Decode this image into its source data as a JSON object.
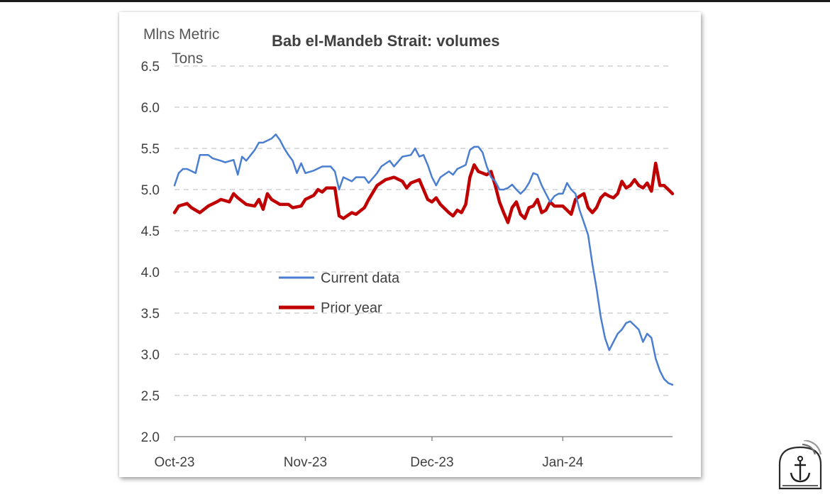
{
  "chart_data": {
    "type": "line",
    "title": "Bab el-Mandeb Strait: volumes",
    "ylabel_lines": [
      "Mlns Metric",
      "Tons"
    ],
    "xlabel": "",
    "ylim": [
      2.0,
      6.5
    ],
    "yticks": [
      "6.5",
      "6.0",
      "5.5",
      "5.0",
      "4.5",
      "4.0",
      "3.5",
      "3.0",
      "2.5",
      "2.0"
    ],
    "xlim": [
      "2023-10-01",
      "2024-01-27"
    ],
    "xticks": [
      {
        "label": "Oct-23",
        "date": "2023-10-01"
      },
      {
        "label": "Nov-23",
        "date": "2023-11-01"
      },
      {
        "label": "Dec-23",
        "date": "2023-12-01"
      },
      {
        "label": "Jan-24",
        "date": "2024-01-01"
      }
    ],
    "grid": "horizontal dashed",
    "legend_position": "center-left",
    "series": [
      {
        "name": "Current data",
        "color": "#4a7ed0",
        "points": [
          [
            "2023-10-01",
            5.05
          ],
          [
            "2023-10-02",
            5.2
          ],
          [
            "2023-10-03",
            5.25
          ],
          [
            "2023-10-04",
            5.25
          ],
          [
            "2023-10-06",
            5.2
          ],
          [
            "2023-10-07",
            5.42
          ],
          [
            "2023-10-09",
            5.42
          ],
          [
            "2023-10-10",
            5.38
          ],
          [
            "2023-10-12",
            5.35
          ],
          [
            "2023-10-13",
            5.33
          ],
          [
            "2023-10-15",
            5.36
          ],
          [
            "2023-10-16",
            5.18
          ],
          [
            "2023-10-17",
            5.4
          ],
          [
            "2023-10-18",
            5.35
          ],
          [
            "2023-10-20",
            5.48
          ],
          [
            "2023-10-21",
            5.57
          ],
          [
            "2023-10-22",
            5.57
          ],
          [
            "2023-10-24",
            5.62
          ],
          [
            "2023-10-25",
            5.67
          ],
          [
            "2023-10-26",
            5.6
          ],
          [
            "2023-10-27",
            5.5
          ],
          [
            "2023-10-28",
            5.42
          ],
          [
            "2023-10-29",
            5.35
          ],
          [
            "2023-10-30",
            5.2
          ],
          [
            "2023-10-31",
            5.32
          ],
          [
            "2023-11-01",
            5.2
          ],
          [
            "2023-11-03",
            5.23
          ],
          [
            "2023-11-05",
            5.28
          ],
          [
            "2023-11-07",
            5.28
          ],
          [
            "2023-11-08",
            5.22
          ],
          [
            "2023-11-09",
            5.0
          ],
          [
            "2023-11-10",
            5.15
          ],
          [
            "2023-11-12",
            5.1
          ],
          [
            "2023-11-13",
            5.15
          ],
          [
            "2023-11-15",
            5.15
          ],
          [
            "2023-11-16",
            5.08
          ],
          [
            "2023-11-18",
            5.2
          ],
          [
            "2023-11-19",
            5.28
          ],
          [
            "2023-11-21",
            5.35
          ],
          [
            "2023-11-22",
            5.28
          ],
          [
            "2023-11-24",
            5.4
          ],
          [
            "2023-11-26",
            5.42
          ],
          [
            "2023-11-27",
            5.5
          ],
          [
            "2023-11-28",
            5.4
          ],
          [
            "2023-11-29",
            5.42
          ],
          [
            "2023-11-30",
            5.3
          ],
          [
            "2023-12-01",
            5.15
          ],
          [
            "2023-12-02",
            5.05
          ],
          [
            "2023-12-03",
            5.15
          ],
          [
            "2023-12-05",
            5.22
          ],
          [
            "2023-12-06",
            5.18
          ],
          [
            "2023-12-07",
            5.25
          ],
          [
            "2023-12-09",
            5.3
          ],
          [
            "2023-12-10",
            5.48
          ],
          [
            "2023-12-11",
            5.52
          ],
          [
            "2023-12-12",
            5.52
          ],
          [
            "2023-12-13",
            5.45
          ],
          [
            "2023-12-14",
            5.28
          ],
          [
            "2023-12-15",
            5.15
          ],
          [
            "2023-12-16",
            5.1
          ],
          [
            "2023-12-17",
            5.0
          ],
          [
            "2023-12-18",
            5.0
          ],
          [
            "2023-12-19",
            5.02
          ],
          [
            "2023-12-20",
            5.06
          ],
          [
            "2023-12-21",
            5.0
          ],
          [
            "2023-12-22",
            4.95
          ],
          [
            "2023-12-23",
            5.0
          ],
          [
            "2023-12-24",
            5.08
          ],
          [
            "2023-12-25",
            5.2
          ],
          [
            "2023-12-26",
            5.18
          ],
          [
            "2023-12-27",
            5.05
          ],
          [
            "2023-12-28",
            4.95
          ],
          [
            "2023-12-29",
            4.85
          ],
          [
            "2023-12-30",
            4.92
          ],
          [
            "2023-12-31",
            4.95
          ],
          [
            "2024-01-01",
            4.95
          ],
          [
            "2024-01-02",
            5.08
          ],
          [
            "2024-01-03",
            5.0
          ],
          [
            "2024-01-04",
            4.95
          ],
          [
            "2024-01-05",
            4.75
          ],
          [
            "2024-01-06",
            4.6
          ],
          [
            "2024-01-07",
            4.45
          ],
          [
            "2024-01-08",
            4.1
          ],
          [
            "2024-01-09",
            3.8
          ],
          [
            "2024-01-10",
            3.45
          ],
          [
            "2024-01-11",
            3.2
          ],
          [
            "2024-01-12",
            3.05
          ],
          [
            "2024-01-13",
            3.15
          ],
          [
            "2024-01-14",
            3.25
          ],
          [
            "2024-01-15",
            3.3
          ],
          [
            "2024-01-16",
            3.38
          ],
          [
            "2024-01-17",
            3.4
          ],
          [
            "2024-01-18",
            3.35
          ],
          [
            "2024-01-19",
            3.3
          ],
          [
            "2024-01-20",
            3.15
          ],
          [
            "2024-01-21",
            3.25
          ],
          [
            "2024-01-22",
            3.2
          ],
          [
            "2024-01-23",
            2.95
          ],
          [
            "2024-01-24",
            2.8
          ],
          [
            "2024-01-25",
            2.7
          ],
          [
            "2024-01-26",
            2.65
          ],
          [
            "2024-01-27",
            2.63
          ]
        ]
      },
      {
        "name": "Prior year",
        "color": "#c00000",
        "points": [
          [
            "2023-10-01",
            4.72
          ],
          [
            "2023-10-02",
            4.8
          ],
          [
            "2023-10-04",
            4.83
          ],
          [
            "2023-10-05",
            4.78
          ],
          [
            "2023-10-07",
            4.72
          ],
          [
            "2023-10-09",
            4.8
          ],
          [
            "2023-10-11",
            4.85
          ],
          [
            "2023-10-12",
            4.88
          ],
          [
            "2023-10-14",
            4.85
          ],
          [
            "2023-10-15",
            4.95
          ],
          [
            "2023-10-16",
            4.9
          ],
          [
            "2023-10-18",
            4.82
          ],
          [
            "2023-10-20",
            4.8
          ],
          [
            "2023-10-21",
            4.88
          ],
          [
            "2023-10-22",
            4.76
          ],
          [
            "2023-10-23",
            4.95
          ],
          [
            "2023-10-24",
            4.88
          ],
          [
            "2023-10-26",
            4.82
          ],
          [
            "2023-10-28",
            4.82
          ],
          [
            "2023-10-29",
            4.78
          ],
          [
            "2023-10-31",
            4.8
          ],
          [
            "2023-11-01",
            4.88
          ],
          [
            "2023-11-03",
            4.93
          ],
          [
            "2023-11-04",
            5.0
          ],
          [
            "2023-11-05",
            4.97
          ],
          [
            "2023-11-06",
            5.02
          ],
          [
            "2023-11-08",
            5.02
          ],
          [
            "2023-11-09",
            4.68
          ],
          [
            "2023-11-10",
            4.65
          ],
          [
            "2023-11-12",
            4.72
          ],
          [
            "2023-11-13",
            4.7
          ],
          [
            "2023-11-15",
            4.78
          ],
          [
            "2023-11-16",
            4.88
          ],
          [
            "2023-11-18",
            5.05
          ],
          [
            "2023-11-20",
            5.12
          ],
          [
            "2023-11-22",
            5.15
          ],
          [
            "2023-11-24",
            5.1
          ],
          [
            "2023-11-25",
            5.02
          ],
          [
            "2023-11-26",
            5.08
          ],
          [
            "2023-11-28",
            5.12
          ],
          [
            "2023-11-29",
            5.0
          ],
          [
            "2023-11-30",
            4.88
          ],
          [
            "2023-12-01",
            4.85
          ],
          [
            "2023-12-02",
            4.9
          ],
          [
            "2023-12-03",
            4.82
          ],
          [
            "2023-12-05",
            4.72
          ],
          [
            "2023-12-06",
            4.68
          ],
          [
            "2023-12-07",
            4.75
          ],
          [
            "2023-12-08",
            4.72
          ],
          [
            "2023-12-09",
            4.82
          ],
          [
            "2023-12-10",
            5.15
          ],
          [
            "2023-12-11",
            5.3
          ],
          [
            "2023-12-12",
            5.22
          ],
          [
            "2023-12-13",
            5.2
          ],
          [
            "2023-12-14",
            5.18
          ],
          [
            "2023-12-15",
            5.22
          ],
          [
            "2023-12-16",
            5.05
          ],
          [
            "2023-12-17",
            4.85
          ],
          [
            "2023-12-18",
            4.72
          ],
          [
            "2023-12-19",
            4.6
          ],
          [
            "2023-12-20",
            4.78
          ],
          [
            "2023-12-21",
            4.85
          ],
          [
            "2023-12-22",
            4.7
          ],
          [
            "2023-12-23",
            4.65
          ],
          [
            "2023-12-24",
            4.78
          ],
          [
            "2023-12-25",
            4.8
          ],
          [
            "2023-12-26",
            4.88
          ],
          [
            "2023-12-27",
            4.72
          ],
          [
            "2023-12-28",
            4.75
          ],
          [
            "2023-12-29",
            4.85
          ],
          [
            "2023-12-30",
            4.8
          ],
          [
            "2023-12-31",
            4.8
          ],
          [
            "2024-01-01",
            4.8
          ],
          [
            "2024-01-02",
            4.75
          ],
          [
            "2024-01-03",
            4.7
          ],
          [
            "2024-01-04",
            4.88
          ],
          [
            "2024-01-05",
            4.92
          ],
          [
            "2024-01-06",
            4.95
          ],
          [
            "2024-01-07",
            4.78
          ],
          [
            "2024-01-08",
            4.72
          ],
          [
            "2024-01-09",
            4.78
          ],
          [
            "2024-01-10",
            4.9
          ],
          [
            "2024-01-11",
            4.95
          ],
          [
            "2024-01-12",
            4.92
          ],
          [
            "2024-01-13",
            4.9
          ],
          [
            "2024-01-14",
            4.95
          ],
          [
            "2024-01-15",
            5.1
          ],
          [
            "2024-01-16",
            5.02
          ],
          [
            "2024-01-17",
            5.05
          ],
          [
            "2024-01-18",
            5.12
          ],
          [
            "2024-01-19",
            5.05
          ],
          [
            "2024-01-20",
            5.02
          ],
          [
            "2024-01-21",
            5.08
          ],
          [
            "2024-01-22",
            4.98
          ],
          [
            "2024-01-23",
            5.32
          ],
          [
            "2024-01-24",
            5.05
          ],
          [
            "2024-01-25",
            5.05
          ],
          [
            "2024-01-26",
            5.0
          ],
          [
            "2024-01-27",
            4.95
          ]
        ]
      }
    ]
  }
}
